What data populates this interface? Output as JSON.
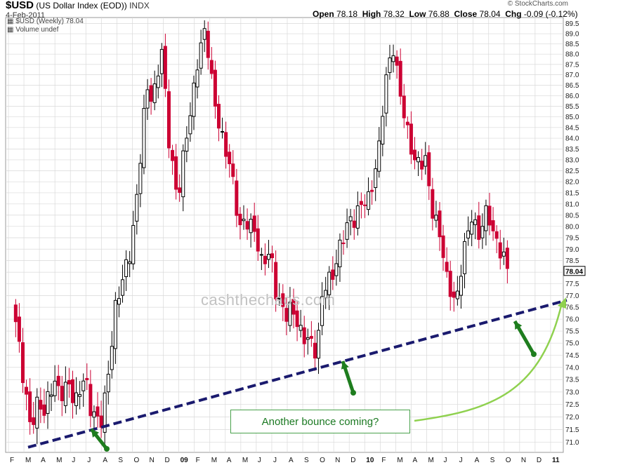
{
  "header": {
    "symbol": "$USD",
    "name": "(US Dollar Index (EOD))",
    "exchange": "INDX",
    "date": "4-Feb-2011",
    "credit": "© StockCharts.com",
    "open_label": "Open",
    "open": "78.18",
    "high_label": "High",
    "high": "78.32",
    "low_label": "Low",
    "low": "76.88",
    "close_label": "Close",
    "close": "78.04",
    "chg_label": "Chg",
    "chg": "-0.09 (-0.12%)"
  },
  "legend": {
    "series": "$USD (Weekly) 78.04",
    "volume": "Volume undef"
  },
  "watermark": "cashthechaos.com",
  "callout": "Another bounce coming?",
  "last_price_tag": "78.04",
  "colors": {
    "up": "#000000",
    "down": "#cc0033",
    "trendline": "#1a1a6e",
    "arrow": "#1e7d1e",
    "curve": "#8fd14f",
    "grid": "#d9d9d9"
  },
  "chart_data": {
    "type": "candlestick",
    "series_name": "$USD (Weekly)",
    "interval": "weekly",
    "x_start": "2008-02",
    "x_end": "2011-02",
    "xlabels": [
      "F",
      "M",
      "A",
      "M",
      "J",
      "J",
      "A",
      "S",
      "O",
      "N",
      "D",
      "09",
      "F",
      "M",
      "A",
      "M",
      "J",
      "J",
      "A",
      "S",
      "O",
      "N",
      "D",
      "10",
      "F",
      "M",
      "A",
      "M",
      "J",
      "J",
      "A",
      "S",
      "O",
      "N",
      "D",
      "11"
    ],
    "ylim": [
      70.6,
      89.8
    ],
    "yticks": [
      71.0,
      71.5,
      72.0,
      72.5,
      73.0,
      73.5,
      74.0,
      74.5,
      75.0,
      75.5,
      76.0,
      76.5,
      77.0,
      77.5,
      78.0,
      78.5,
      79.0,
      79.5,
      80.0,
      80.5,
      81.0,
      81.5,
      82.0,
      82.5,
      83.0,
      83.5,
      84.0,
      84.5,
      85.0,
      85.5,
      86.0,
      86.5,
      87.0,
      87.5,
      88.0,
      88.5,
      89.0,
      89.5
    ],
    "scale": "log",
    "close_path": [
      {
        "month": 0,
        "close": 76.6
      },
      {
        "month": 0.7,
        "close": 73.3
      },
      {
        "month": 1.1,
        "close": 71.6
      },
      {
        "month": 1.6,
        "close": 72.6
      },
      {
        "month": 2.0,
        "close": 72.2
      },
      {
        "month": 2.6,
        "close": 73.5
      },
      {
        "month": 3.0,
        "close": 72.9
      },
      {
        "month": 3.6,
        "close": 73.3
      },
      {
        "month": 4.0,
        "close": 72.5
      },
      {
        "month": 4.6,
        "close": 73.7
      },
      {
        "month": 5.0,
        "close": 72.3
      },
      {
        "month": 5.6,
        "close": 71.7
      },
      {
        "month": 6.0,
        "close": 73.0
      },
      {
        "month": 6.6,
        "close": 76.5
      },
      {
        "month": 7.0,
        "close": 77.6
      },
      {
        "month": 7.6,
        "close": 79.0
      },
      {
        "month": 8.0,
        "close": 81.5
      },
      {
        "month": 8.6,
        "close": 86.5
      },
      {
        "month": 9.0,
        "close": 85.7
      },
      {
        "month": 9.6,
        "close": 88.3
      },
      {
        "month": 10.0,
        "close": 84.1
      },
      {
        "month": 10.6,
        "close": 81.1
      },
      {
        "month": 11.0,
        "close": 83.3
      },
      {
        "month": 11.6,
        "close": 86.0
      },
      {
        "month": 12.0,
        "close": 88.2
      },
      {
        "month": 12.4,
        "close": 89.2
      },
      {
        "month": 13.0,
        "close": 85.6
      },
      {
        "month": 13.6,
        "close": 83.6
      },
      {
        "month": 14.0,
        "close": 82.8
      },
      {
        "month": 14.6,
        "close": 79.9
      },
      {
        "month": 15.0,
        "close": 80.3
      },
      {
        "month": 15.6,
        "close": 79.8
      },
      {
        "month": 16.0,
        "close": 78.4
      },
      {
        "month": 16.6,
        "close": 78.9
      },
      {
        "month": 17.0,
        "close": 76.9
      },
      {
        "month": 17.6,
        "close": 76.2
      },
      {
        "month": 18.0,
        "close": 76.5
      },
      {
        "month": 18.6,
        "close": 75.3
      },
      {
        "month": 19.0,
        "close": 75.2
      },
      {
        "month": 19.6,
        "close": 74.6
      },
      {
        "month": 20.0,
        "close": 77.4
      },
      {
        "month": 20.6,
        "close": 77.8
      },
      {
        "month": 21.0,
        "close": 78.9
      },
      {
        "month": 21.6,
        "close": 80.2
      },
      {
        "month": 22.0,
        "close": 80.3
      },
      {
        "month": 22.6,
        "close": 81.2
      },
      {
        "month": 23.0,
        "close": 81.2
      },
      {
        "month": 23.6,
        "close": 83.5
      },
      {
        "month": 24.0,
        "close": 86.6
      },
      {
        "month": 24.5,
        "close": 88.4
      },
      {
        "month": 25.0,
        "close": 86.0
      },
      {
        "month": 25.6,
        "close": 83.7
      },
      {
        "month": 26.0,
        "close": 82.8
      },
      {
        "month": 26.6,
        "close": 83.0
      },
      {
        "month": 27.0,
        "close": 80.8
      },
      {
        "month": 27.6,
        "close": 79.5
      },
      {
        "month": 28.0,
        "close": 77.6
      },
      {
        "month": 28.6,
        "close": 76.6
      },
      {
        "month": 29.0,
        "close": 78.7
      },
      {
        "month": 29.6,
        "close": 80.5
      },
      {
        "month": 30.0,
        "close": 79.5
      },
      {
        "month": 30.6,
        "close": 80.8
      },
      {
        "month": 31.0,
        "close": 79.6
      },
      {
        "month": 31.6,
        "close": 78.7
      },
      {
        "month": 32.0,
        "close": 78.0
      }
    ],
    "annotations": {
      "trendline": [
        {
          "date": "2008-03",
          "value": 70.8
        },
        {
          "date": "2011-02",
          "value": 76.8
        }
      ],
      "callout": "Another bounce coming?",
      "arrows": [
        "2008-07 low",
        "2009-11 low",
        "2010-11 low"
      ]
    }
  }
}
